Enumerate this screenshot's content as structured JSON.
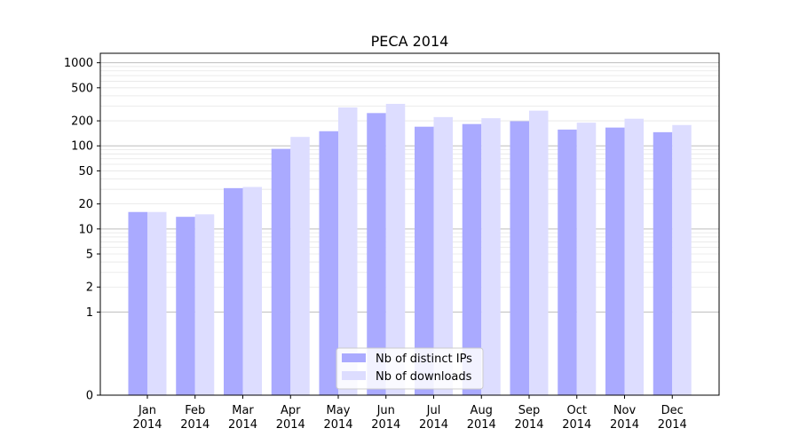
{
  "chart_data": {
    "type": "bar",
    "title": "PECA 2014",
    "xlabel": "",
    "ylabel": "",
    "y_scale": "symlog",
    "ylim": [
      0,
      1300
    ],
    "y_ticks": [
      0,
      1,
      2,
      5,
      10,
      20,
      50,
      100,
      200,
      500,
      1000
    ],
    "grid": true,
    "legend_position": "bottom-center",
    "categories": [
      [
        "Jan",
        "2014"
      ],
      [
        "Feb",
        "2014"
      ],
      [
        "Mar",
        "2014"
      ],
      [
        "Apr",
        "2014"
      ],
      [
        "May",
        "2014"
      ],
      [
        "Jun",
        "2014"
      ],
      [
        "Jul",
        "2014"
      ],
      [
        "Aug",
        "2014"
      ],
      [
        "Sep",
        "2014"
      ],
      [
        "Oct",
        "2014"
      ],
      [
        "Nov",
        "2014"
      ],
      [
        "Dec",
        "2014"
      ]
    ],
    "series": [
      {
        "name": "Nb of distinct IPs",
        "color": "#aaaaff",
        "values": [
          16,
          14,
          31,
          92,
          150,
          248,
          170,
          183,
          198,
          157,
          166,
          146
        ]
      },
      {
        "name": "Nb of downloads",
        "color": "#ddddff",
        "values": [
          16,
          15,
          32,
          128,
          290,
          320,
          222,
          215,
          265,
          190,
          212,
          178
        ]
      }
    ]
  }
}
